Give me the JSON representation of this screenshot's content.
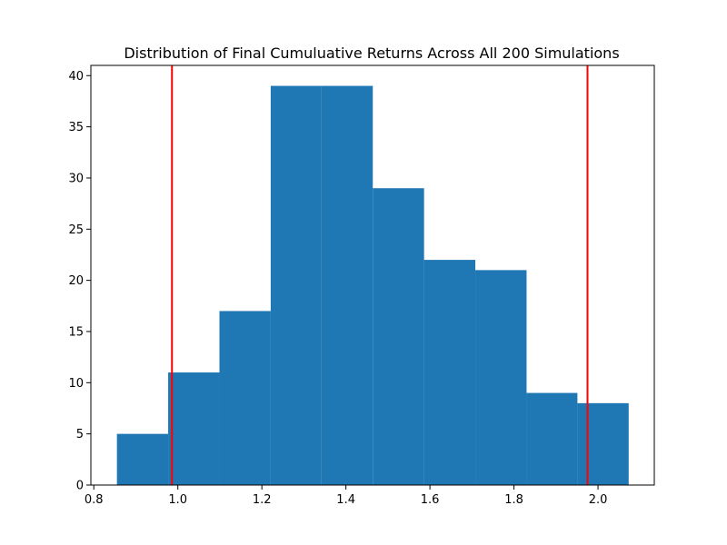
{
  "chart_data": {
    "type": "bar",
    "title": "Distribution of Final Cumuluative Returns Across All 200 Simulations",
    "xlabel": "",
    "ylabel": "",
    "xlim": [
      0.793,
      2.134
    ],
    "ylim": [
      0,
      41
    ],
    "x_ticks": [
      0.8,
      1.0,
      1.2,
      1.4,
      1.6,
      1.8,
      2.0
    ],
    "x_tick_labels": [
      "0.8",
      "1.0",
      "1.2",
      "1.4",
      "1.6",
      "1.8",
      "2.0"
    ],
    "y_ticks": [
      0,
      5,
      10,
      15,
      20,
      25,
      30,
      35,
      40
    ],
    "y_tick_labels": [
      "0",
      "5",
      "10",
      "15",
      "20",
      "25",
      "30",
      "35",
      "40"
    ],
    "bins": [
      {
        "x0": 0.855,
        "x1": 0.977,
        "count": 5
      },
      {
        "x0": 0.977,
        "x1": 1.099,
        "count": 11
      },
      {
        "x0": 1.099,
        "x1": 1.221,
        "count": 17
      },
      {
        "x0": 1.221,
        "x1": 1.342,
        "count": 39
      },
      {
        "x0": 1.342,
        "x1": 1.464,
        "count": 39
      },
      {
        "x0": 1.464,
        "x1": 1.586,
        "count": 29
      },
      {
        "x0": 1.586,
        "x1": 1.708,
        "count": 22
      },
      {
        "x0": 1.708,
        "x1": 1.83,
        "count": 21
      },
      {
        "x0": 1.83,
        "x1": 1.951,
        "count": 9
      },
      {
        "x0": 1.951,
        "x1": 2.073,
        "count": 8
      }
    ],
    "vlines": [
      {
        "x": 0.986,
        "color": "#ff0000"
      },
      {
        "x": 1.975,
        "color": "#ff0000"
      }
    ],
    "bar_color": "#1f77b4",
    "grid": false,
    "legend": "none"
  }
}
